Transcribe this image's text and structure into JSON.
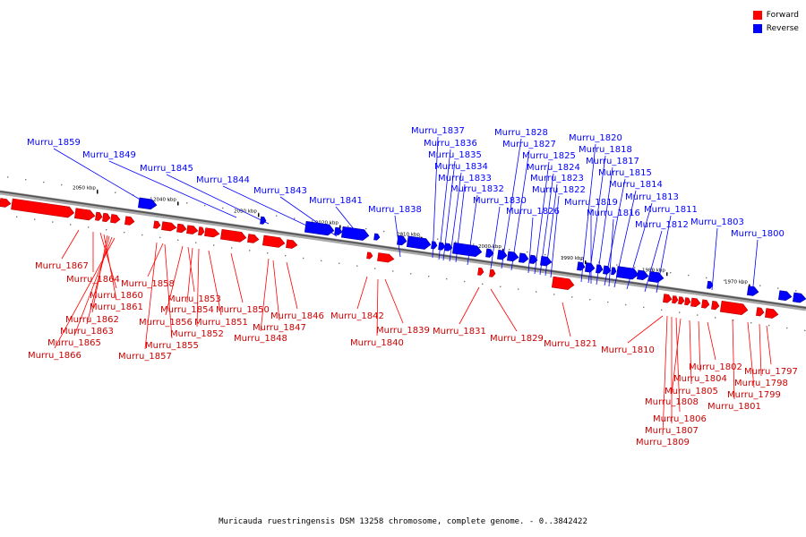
{
  "legend": {
    "forward_label": "Forward",
    "reverse_label": "Reverse",
    "forward_color": "#ff0000",
    "reverse_color": "#0000ff"
  },
  "caption": "Muricauda ruestringensis DSM 13258 chromosome, complete genome. - 0..3842422",
  "ticks": [
    "2050 kbp",
    "2040 kbp",
    "2030 kbp",
    "2020 kbp",
    "2010 kbp",
    "2000 kbp",
    "1990 kbp",
    "1980 kbp",
    "1970 kbp"
  ],
  "reverse_labels": [
    "Murru_1859",
    "Murru_1849",
    "Murru_1845",
    "Murru_1844",
    "Murru_1843",
    "Murru_1841",
    "Murru_1838",
    "Murru_1837",
    "Murru_1836",
    "Murru_1835",
    "Murru_1834",
    "Murru_1833",
    "Murru_1832",
    "Murru_1830",
    "Murru_1828",
    "Murru_1827",
    "Murru_1826",
    "Murru_1825",
    "Murru_1824",
    "Murru_1823",
    "Murru_1822",
    "Murru_1820",
    "Murru_1818",
    "Murru_1817",
    "Murru_1815",
    "Murru_1814",
    "Murru_1813",
    "Murru_1819",
    "Murru_1816",
    "Murru_1812",
    "Murru_1811",
    "Murru_1803",
    "Murru_1800"
  ],
  "forward_labels": [
    "Murru_1867",
    "Murru_1864",
    "Murru_1860",
    "Murru_1861",
    "Murru_1862",
    "Murru_1863",
    "Murru_1865",
    "Murru_1866",
    "Murru_1858",
    "Murru_1853",
    "Murru_1854",
    "Murru_1856",
    "Murru_1852",
    "Murru_1855",
    "Murru_1857",
    "Murru_1851",
    "Murru_1850",
    "Murru_1848",
    "Murru_1846",
    "Murru_1847",
    "Murru_1842",
    "Murru_1840",
    "Murru_1839",
    "Murru_1831",
    "Murru_1829",
    "Murru_1821",
    "Murru_1810",
    "Murru_1802",
    "Murru_1804",
    "Murru_1805",
    "Murru_1808",
    "Murru_1806",
    "Murru_1807",
    "Murru_1809",
    "Murru_1801",
    "Murru_1799",
    "Murru_1798",
    "Murru_1797"
  ]
}
